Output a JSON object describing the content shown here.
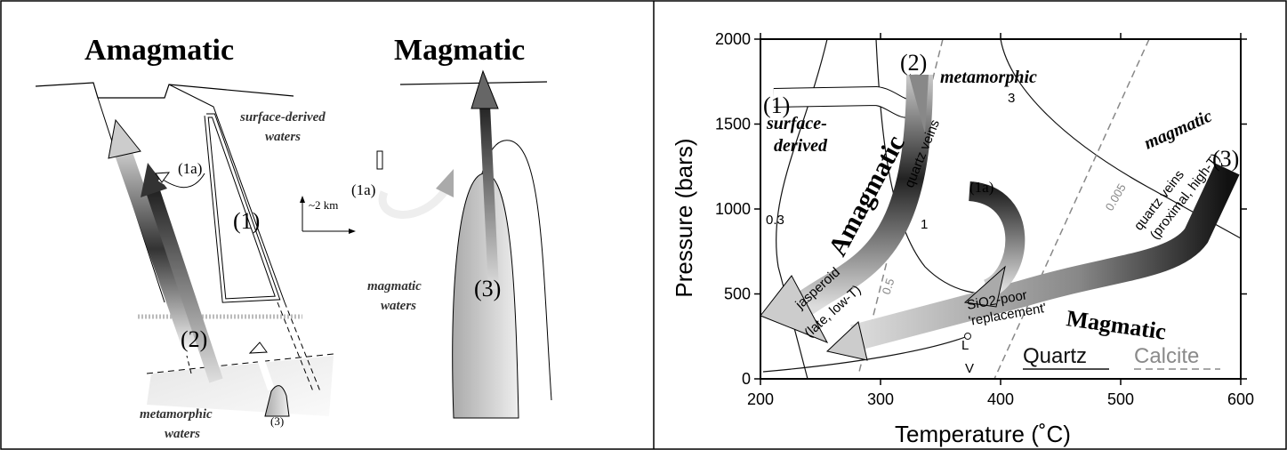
{
  "left_diagram": {
    "titles": [
      "Amagmatic",
      "Magmatic"
    ],
    "labels": [
      "surface-derived",
      "waters",
      "(1a)",
      "(1)",
      "~2 km",
      "(1a)",
      "(3)",
      "magmatic",
      "waters",
      "(2)",
      "metamorphic",
      "waters",
      "(3)"
    ]
  },
  "chart_data": {
    "type": "line",
    "x_label": "Temperature (˚C)",
    "y_label": "Pressure (bars)",
    "xlim": [
      200,
      600
    ],
    "ylim": [
      0,
      2000
    ],
    "xticks": [
      200,
      300,
      400,
      500,
      600
    ],
    "yticks": [
      0,
      500,
      1000,
      1500,
      2000
    ],
    "legend": [
      {
        "label": "Quartz",
        "color": "#111111"
      },
      {
        "label": "Calcite",
        "color": "#8a8a8a"
      }
    ],
    "annotations": [
      "(2)",
      "metamorphic",
      "(1)",
      "surface-",
      "derived",
      "Amagmatic",
      "quartz veins",
      "3",
      "magmatic",
      "(3)",
      "quartz veins",
      "(proximal, high-T)",
      "0.005",
      "(1a)",
      "0.3",
      "0.5",
      "1",
      "SiO2-poor",
      "'replacement'",
      "jasperoid",
      "(late, low-T)",
      "Magmatic",
      "L",
      "V"
    ]
  }
}
